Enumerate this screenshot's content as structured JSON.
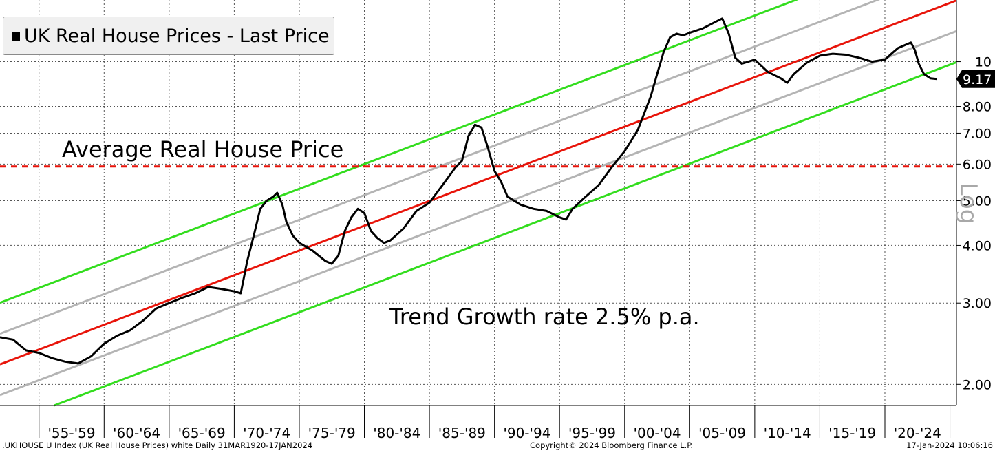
{
  "legend": {
    "label": "UK Real House Prices - Last Price"
  },
  "annotations": {
    "average": "Average Real House Price",
    "trend": "Trend Growth rate 2.5% p.a."
  },
  "axis": {
    "scale_label": "Log"
  },
  "footer": {
    "left": ".UKHOUSE U Index (UK Real House Prices) white  Daily 31MAR1920-17JAN2024",
    "mid": "Copyright© 2024 Bloomberg Finance L.P.",
    "right": "17-Jan-2024 10:06:16"
  },
  "colors": {
    "series": "#000000",
    "trend": "#e8140a",
    "sd1": "#b4b4b4",
    "sd2": "#33dd1e",
    "average": "#e8140a"
  },
  "chart_data": {
    "type": "line",
    "yscale": "log",
    "title": "UK Real House Prices - Last Price",
    "xlim": [
      1952.0,
      2025.5
    ],
    "ylim": [
      1.8,
      13.6
    ],
    "x_tick_labels": [
      "'55-'59",
      "'60-'64",
      "'65-'69",
      "'70-'74",
      "'75-'79",
      "'80-'84",
      "'85-'89",
      "'90-'94",
      "'95-'99",
      "'00-'04",
      "'05-'09",
      "'10-'14",
      "'15-'19",
      "'20-'24"
    ],
    "y_ticks": [
      2,
      3,
      4,
      5,
      6,
      7,
      8,
      10
    ],
    "y_tick_labels": [
      "2.00",
      "3.00",
      "4.00",
      "5.00",
      "6.00",
      "7.00",
      "8.00",
      "10"
    ],
    "last_price": {
      "value": 9.17,
      "label": "9.17"
    },
    "average_line": {
      "value": 5.93
    },
    "trend": {
      "rate_pct": 2.5,
      "start": [
        1952.0,
        2.21
      ]
    },
    "bands": [
      {
        "name": "upper-2",
        "multiplier": 1.36,
        "color": "#33dd1e"
      },
      {
        "name": "upper-1",
        "multiplier": 1.165,
        "color": "#b4b4b4"
      },
      {
        "name": "trend",
        "multiplier": 1.0,
        "color": "#e8140a"
      },
      {
        "name": "lower-1",
        "multiplier": 0.858,
        "color": "#b4b4b4"
      },
      {
        "name": "lower-2",
        "multiplier": 0.735,
        "color": "#33dd1e"
      }
    ],
    "series": [
      {
        "name": "UK Real House Prices",
        "x": [
          1952.0,
          1953.0,
          1954.0,
          1955.0,
          1956.0,
          1957.0,
          1958.0,
          1959.0,
          1960.0,
          1961.0,
          1962.0,
          1963.0,
          1964.0,
          1964.5,
          1965.0,
          1966.0,
          1967.0,
          1968.0,
          1969.0,
          1970.0,
          1970.5,
          1971.0,
          1971.5,
          1972.0,
          1972.5,
          1973.0,
          1973.3,
          1973.7,
          1974.0,
          1974.5,
          1975.0,
          1976.0,
          1977.0,
          1977.5,
          1978.0,
          1978.5,
          1979.0,
          1979.5,
          1980.0,
          1980.5,
          1981.0,
          1981.5,
          1982.0,
          1983.0,
          1984.0,
          1985.0,
          1986.0,
          1987.0,
          1987.5,
          1988.0,
          1988.5,
          1989.0,
          1989.5,
          1990.0,
          1990.5,
          1991.0,
          1992.0,
          1993.0,
          1994.0,
          1995.0,
          1995.5,
          1996.0,
          1997.0,
          1998.0,
          1999.0,
          2000.0,
          2001.0,
          2002.0,
          2002.5,
          2003.0,
          2003.5,
          2004.0,
          2004.5,
          2005.0,
          2006.0,
          2007.0,
          2007.5,
          2008.0,
          2008.5,
          2009.0,
          2009.5,
          2010.0,
          2011.0,
          2012.0,
          2012.5,
          2013.0,
          2014.0,
          2015.0,
          2016.0,
          2017.0,
          2018.0,
          2019.0,
          2020.0,
          2020.5,
          2021.0,
          2021.5,
          2022.0,
          2022.3,
          2022.6,
          2023.0,
          2023.5,
          2024.0
        ],
        "values": [
          2.53,
          2.5,
          2.37,
          2.34,
          2.28,
          2.24,
          2.22,
          2.3,
          2.45,
          2.55,
          2.62,
          2.75,
          2.92,
          2.96,
          3.0,
          3.08,
          3.15,
          3.25,
          3.22,
          3.18,
          3.15,
          3.7,
          4.2,
          4.8,
          5.0,
          5.1,
          5.2,
          4.9,
          4.5,
          4.2,
          4.05,
          3.9,
          3.7,
          3.65,
          3.8,
          4.3,
          4.6,
          4.8,
          4.7,
          4.3,
          4.15,
          4.05,
          4.1,
          4.35,
          4.75,
          4.95,
          5.4,
          5.9,
          6.1,
          6.9,
          7.3,
          7.2,
          6.5,
          5.8,
          5.5,
          5.1,
          4.9,
          4.8,
          4.75,
          4.6,
          4.55,
          4.8,
          5.1,
          5.4,
          5.9,
          6.4,
          7.1,
          8.4,
          9.4,
          10.5,
          11.3,
          11.5,
          11.4,
          11.55,
          11.8,
          12.2,
          12.4,
          11.5,
          10.2,
          9.9,
          10.0,
          10.1,
          9.5,
          9.2,
          9.0,
          9.4,
          9.95,
          10.3,
          10.4,
          10.35,
          10.2,
          10.0,
          10.1,
          10.4,
          10.7,
          10.85,
          11.0,
          10.6,
          9.9,
          9.4,
          9.2,
          9.17
        ]
      }
    ]
  }
}
